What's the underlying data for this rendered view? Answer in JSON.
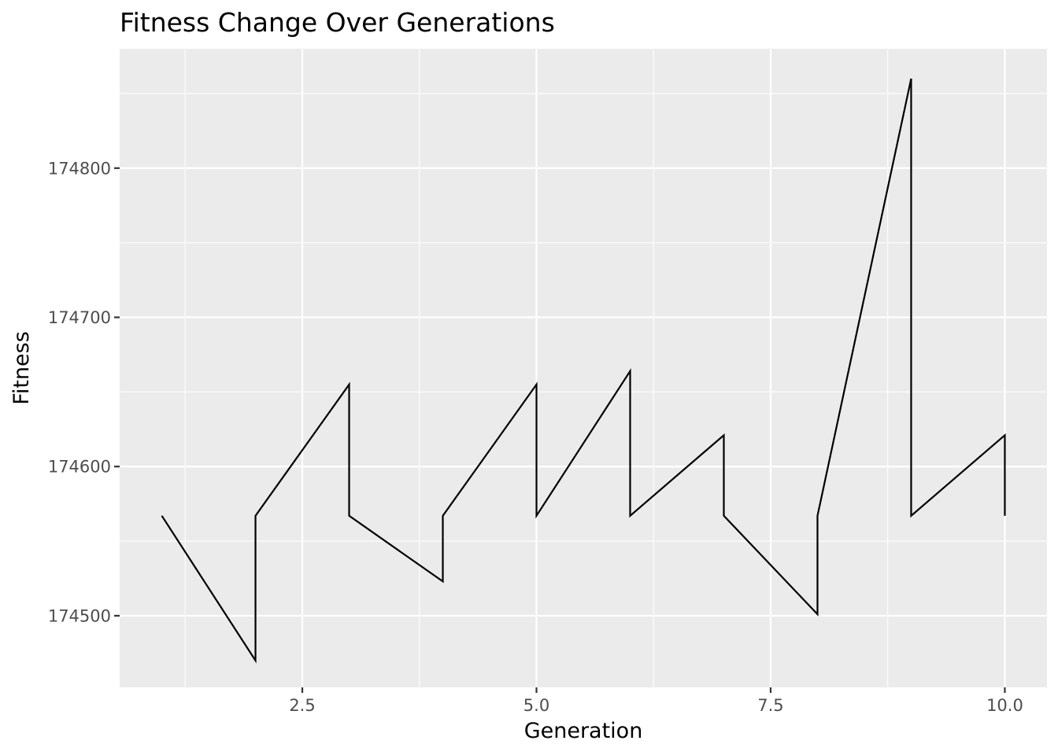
{
  "chart_data": {
    "type": "line",
    "title": "Fitness Change Over Generations",
    "xlabel": "Generation",
    "ylabel": "Fitness",
    "xlim": [
      0.55,
      10.45
    ],
    "ylim": [
      174452,
      174880
    ],
    "x_ticks": [
      2.5,
      5.0,
      7.5,
      10.0
    ],
    "x_tick_labels": [
      "2.5",
      "5.0",
      "7.5",
      "10.0"
    ],
    "y_ticks": [
      174500,
      174600,
      174700,
      174800
    ],
    "y_tick_labels": [
      "174500",
      "174600",
      "174700",
      "174800"
    ],
    "grid": true,
    "legend": "none",
    "colors": {
      "panel": "#ebebeb",
      "grid": "#ffffff",
      "line": "#000000",
      "tick": "#333333"
    },
    "series": [
      {
        "x": [
          1,
          2,
          2,
          3,
          3,
          4,
          4,
          5,
          5,
          6,
          6,
          7,
          7,
          8,
          8,
          9,
          9,
          10,
          10
        ],
        "y": [
          174567,
          174470,
          174567,
          174655,
          174567,
          174523,
          174567,
          174655,
          174567,
          174664,
          174567,
          174621,
          174567,
          174501,
          174567,
          174860,
          174567,
          174621,
          174567
        ]
      }
    ]
  }
}
